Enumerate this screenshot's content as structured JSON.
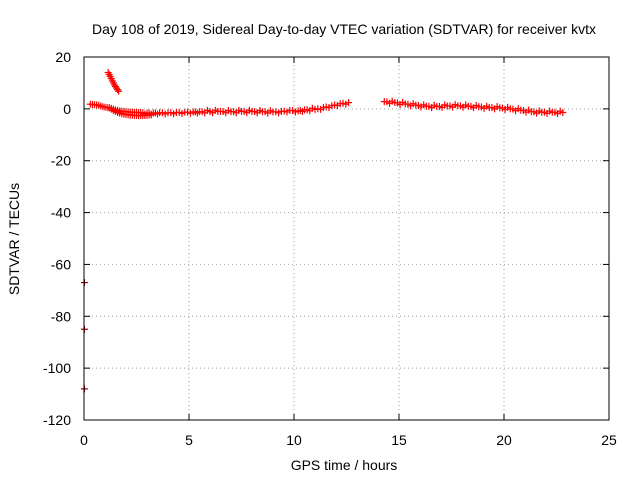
{
  "chart_data": {
    "type": "scatter",
    "title": "Day 108 of 2019, Sidereal Day-to-day VTEC variation (SDTVAR) for receiver kvtx",
    "xlabel": "GPS time / hours",
    "ylabel": "SDTVAR / TECUs",
    "xlim": [
      0,
      25
    ],
    "ylim": [
      -120,
      20
    ],
    "x_ticks": [
      0,
      5,
      10,
      15,
      20,
      25
    ],
    "y_ticks": [
      -120,
      -100,
      -80,
      -60,
      -40,
      -20,
      0,
      20
    ],
    "grid": true,
    "legend": "none",
    "colors": {
      "points": "#ff0000",
      "outliers": "#8b0000"
    },
    "series": [
      {
        "name": "main-track",
        "color": "#ff0000",
        "x": [
          0.3,
          0.5,
          0.7,
          0.9,
          1.1,
          1.3,
          1.5,
          1.7,
          1.9,
          2.1,
          2.3,
          2.5,
          2.7,
          3.0,
          3.3,
          3.6,
          4.0,
          4.4,
          4.8,
          5.2,
          5.5,
          6.5,
          7.0,
          7.5,
          8.0,
          8.5,
          9.0,
          9.4,
          9.8,
          10.2,
          10.5,
          11.0,
          11.4,
          11.8,
          12.2,
          12.6,
          14.3,
          14.8,
          15.3,
          15.8,
          16.3,
          16.8,
          17.3,
          17.8,
          18.3,
          18.8,
          19.3,
          19.8,
          20.3,
          20.8,
          21.3,
          21.8,
          22.3,
          22.8
        ],
        "y": [
          1.8,
          1.6,
          1.4,
          0.8,
          0.5,
          0.2,
          -0.4,
          -0.8,
          -1.0,
          -1.2,
          -1.3,
          -1.4,
          -1.5,
          -1.6,
          -1.6,
          -1.5,
          -1.5,
          -1.4,
          -1.3,
          -1.2,
          -1.1,
          -1.0,
          -1.1,
          -1.0,
          -1.0,
          -1.1,
          -1.2,
          -1.0,
          -0.6,
          -0.8,
          -0.4,
          -0.2,
          0.5,
          1.2,
          2.0,
          2.4,
          2.8,
          2.4,
          1.9,
          1.4,
          1.0,
          0.9,
          1.1,
          1.2,
          1.0,
          0.8,
          0.5,
          0.4,
          0.0,
          -0.5,
          -1.1,
          -1.3,
          -1.3,
          -1.4
        ]
      },
      {
        "name": "lower-band",
        "color": "#ff0000",
        "x": [
          1.2,
          1.4,
          1.6,
          1.8,
          2.0,
          2.2,
          2.4,
          2.6,
          2.8,
          3.0,
          3.2
        ],
        "y": [
          0.4,
          -0.6,
          -1.4,
          -1.9,
          -2.2,
          -2.4,
          -2.5,
          -2.6,
          -2.6,
          -2.5,
          -2.3
        ]
      },
      {
        "name": "rising-arc",
        "color": "#ff0000",
        "x": [
          1.15,
          1.25,
          1.35,
          1.45,
          1.55,
          1.65
        ],
        "y": [
          14.0,
          12.5,
          10.8,
          9.2,
          8.0,
          6.8
        ]
      },
      {
        "name": "outliers",
        "color": "#8b0000",
        "x": [
          0.02,
          0.02,
          0.02
        ],
        "y": [
          -67,
          -85,
          -108
        ]
      }
    ]
  }
}
